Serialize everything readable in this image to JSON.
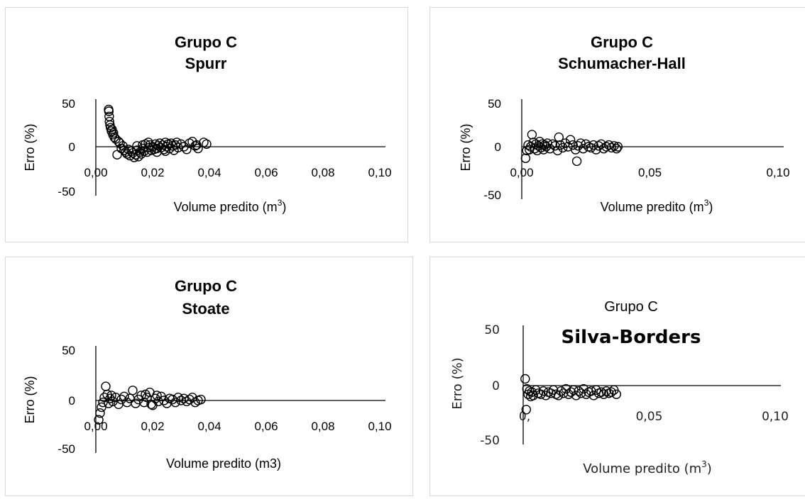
{
  "chart_data": [
    {
      "type": "scatter",
      "title": "Grupo C",
      "subtitle": "Spurr",
      "xlabel": "Volume predito (m",
      "xlabel_sup": "3",
      "xlabel_end": ")",
      "ylabel": "Erro (%)",
      "xlim": [
        0,
        0.1
      ],
      "ylim": [
        -50,
        50
      ],
      "xticks": [
        "0,00",
        "0,02",
        "0,04",
        "0,06",
        "0,08",
        "0,10"
      ],
      "yticks": [
        "50",
        "0",
        "-50"
      ],
      "points": [
        [
          0.0045,
          43
        ],
        [
          0.0046,
          41
        ],
        [
          0.0047,
          35
        ],
        [
          0.0048,
          29
        ],
        [
          0.005,
          25
        ],
        [
          0.0052,
          22
        ],
        [
          0.0055,
          18
        ],
        [
          0.0057,
          20
        ],
        [
          0.006,
          14
        ],
        [
          0.0062,
          16
        ],
        [
          0.0065,
          11
        ],
        [
          0.007,
          9
        ],
        [
          0.0075,
          -9
        ],
        [
          0.008,
          6
        ],
        [
          0.0085,
          4
        ],
        [
          0.009,
          -2
        ],
        [
          0.0095,
          1
        ],
        [
          0.01,
          -4
        ],
        [
          0.0105,
          -6
        ],
        [
          0.011,
          -8
        ],
        [
          0.0115,
          -3
        ],
        [
          0.012,
          -10
        ],
        [
          0.0125,
          -5
        ],
        [
          0.013,
          -7
        ],
        [
          0.0135,
          -12
        ],
        [
          0.014,
          -9
        ],
        [
          0.0145,
          -4
        ],
        [
          0.015,
          -11
        ],
        [
          0.0155,
          -6
        ],
        [
          0.016,
          -8
        ],
        [
          0.0165,
          -2
        ],
        [
          0.017,
          -5
        ],
        [
          0.0175,
          3
        ],
        [
          0.018,
          -6
        ],
        [
          0.0185,
          -1
        ],
        [
          0.019,
          2
        ],
        [
          0.0195,
          -4
        ],
        [
          0.02,
          0
        ],
        [
          0.0205,
          -3
        ],
        [
          0.021,
          3
        ],
        [
          0.0215,
          -2
        ],
        [
          0.022,
          1
        ],
        [
          0.0225,
          4
        ],
        [
          0.023,
          -1
        ],
        [
          0.0235,
          2
        ],
        [
          0.024,
          -3
        ],
        [
          0.0245,
          5
        ],
        [
          0.025,
          0
        ],
        [
          0.0255,
          3
        ],
        [
          0.026,
          -2
        ],
        [
          0.0265,
          4
        ],
        [
          0.027,
          1
        ],
        [
          0.0275,
          -4
        ],
        [
          0.028,
          2
        ],
        [
          0.0285,
          5
        ],
        [
          0.029,
          -1
        ],
        [
          0.03,
          3
        ],
        [
          0.031,
          0
        ],
        [
          0.032,
          -3
        ],
        [
          0.033,
          4
        ],
        [
          0.034,
          6
        ],
        [
          0.035,
          1
        ],
        [
          0.0355,
          2
        ],
        [
          0.036,
          -2
        ],
        [
          0.038,
          5
        ],
        [
          0.039,
          3
        ],
        [
          0.0185,
          5
        ],
        [
          0.0165,
          2
        ],
        [
          0.0145,
          1
        ],
        [
          0.0215,
          -6
        ],
        [
          0.0245,
          -5
        ]
      ]
    },
    {
      "type": "scatter",
      "title": "Grupo C",
      "subtitle": "Schumacher-Hall",
      "xlabel": "Volume predito (m",
      "xlabel_sup": "3",
      "xlabel_end": ")",
      "ylabel": "Erro (%)",
      "xlim": [
        0,
        0.1
      ],
      "ylim": [
        -50,
        50
      ],
      "xticks": [
        "0,00",
        "0,05",
        "0,10"
      ],
      "xtick_values": [
        0,
        0.05,
        0.1
      ],
      "yticks": [
        "50",
        "0",
        "-50"
      ],
      "points": [
        [
          0.0015,
          -12
        ],
        [
          0.002,
          -4
        ],
        [
          0.0025,
          2
        ],
        [
          0.003,
          -3
        ],
        [
          0.0035,
          0
        ],
        [
          0.004,
          14
        ],
        [
          0.0045,
          5
        ],
        [
          0.005,
          -2
        ],
        [
          0.0055,
          3
        ],
        [
          0.006,
          -4
        ],
        [
          0.0065,
          1
        ],
        [
          0.007,
          6
        ],
        [
          0.0075,
          -1
        ],
        [
          0.008,
          3
        ],
        [
          0.0085,
          -3
        ],
        [
          0.009,
          2
        ],
        [
          0.0095,
          0
        ],
        [
          0.01,
          4
        ],
        [
          0.011,
          -2
        ],
        [
          0.012,
          3
        ],
        [
          0.013,
          1
        ],
        [
          0.014,
          -4
        ],
        [
          0.0145,
          11
        ],
        [
          0.015,
          2
        ],
        [
          0.016,
          -1
        ],
        [
          0.017,
          4
        ],
        [
          0.018,
          0
        ],
        [
          0.019,
          8
        ],
        [
          0.02,
          2
        ],
        [
          0.021,
          -3
        ],
        [
          0.0215,
          -15
        ],
        [
          0.022,
          1
        ],
        [
          0.023,
          4
        ],
        [
          0.024,
          -2
        ],
        [
          0.025,
          3
        ],
        [
          0.026,
          0
        ],
        [
          0.027,
          -1
        ],
        [
          0.028,
          2
        ],
        [
          0.029,
          -3
        ],
        [
          0.03,
          1
        ],
        [
          0.031,
          3
        ],
        [
          0.032,
          -2
        ],
        [
          0.033,
          0
        ],
        [
          0.034,
          2
        ],
        [
          0.035,
          -1
        ],
        [
          0.036,
          1
        ],
        [
          0.037,
          -2
        ],
        [
          0.0375,
          0
        ]
      ]
    },
    {
      "type": "scatter",
      "title": "Grupo C",
      "subtitle": "Stoate",
      "xlabel": "Volume predito (m3)",
      "ylabel": "Erro (%)",
      "xlim": [
        0,
        0.1
      ],
      "ylim": [
        -50,
        50
      ],
      "xticks": [
        "0,00",
        "0,02",
        "0,04",
        "0,06",
        "0,08",
        "0,10"
      ],
      "yticks": [
        "50",
        "0",
        "-50"
      ],
      "points": [
        [
          0.001,
          -20
        ],
        [
          0.0015,
          -13
        ],
        [
          0.002,
          -7
        ],
        [
          0.0025,
          -2
        ],
        [
          0.003,
          3
        ],
        [
          0.0035,
          14
        ],
        [
          0.004,
          6
        ],
        [
          0.0045,
          -3
        ],
        [
          0.005,
          2
        ],
        [
          0.0055,
          5
        ],
        [
          0.006,
          -1
        ],
        [
          0.007,
          3
        ],
        [
          0.008,
          -4
        ],
        [
          0.009,
          1
        ],
        [
          0.01,
          4
        ],
        [
          0.011,
          -2
        ],
        [
          0.012,
          2
        ],
        [
          0.013,
          10
        ],
        [
          0.014,
          -3
        ],
        [
          0.015,
          1
        ],
        [
          0.016,
          5
        ],
        [
          0.017,
          -2
        ],
        [
          0.018,
          3
        ],
        [
          0.019,
          8
        ],
        [
          0.02,
          -5
        ],
        [
          0.021,
          2
        ],
        [
          0.022,
          -1
        ],
        [
          0.023,
          4
        ],
        [
          0.024,
          0
        ],
        [
          0.025,
          -3
        ],
        [
          0.026,
          2
        ],
        [
          0.027,
          1
        ],
        [
          0.028,
          -2
        ],
        [
          0.029,
          3
        ],
        [
          0.03,
          0
        ],
        [
          0.031,
          2
        ],
        [
          0.032,
          -1
        ],
        [
          0.033,
          1
        ],
        [
          0.034,
          3
        ],
        [
          0.035,
          -2
        ],
        [
          0.036,
          0
        ],
        [
          0.037,
          1
        ],
        [
          0.0175,
          6
        ],
        [
          0.0195,
          -4
        ],
        [
          0.0215,
          5
        ]
      ]
    },
    {
      "type": "scatter",
      "title": "Grupo C",
      "subtitle": "Silva-Borders",
      "xlabel": "Volume predito (m",
      "xlabel_sup": "3",
      "xlabel_end": ")",
      "ylabel": "Erro (%)",
      "xlim": [
        0,
        0.1
      ],
      "ylim": [
        -50,
        50
      ],
      "xticks": [
        "0,",
        "0,05",
        "0,10"
      ],
      "xtick_values": [
        0,
        0.05,
        0.1
      ],
      "yticks": [
        "50",
        "0",
        "-50"
      ],
      "points": [
        [
          0.0008,
          6
        ],
        [
          0.0012,
          -22
        ],
        [
          0.0015,
          -3
        ],
        [
          0.002,
          -8
        ],
        [
          0.0025,
          -5
        ],
        [
          0.003,
          -10
        ],
        [
          0.0035,
          -6
        ],
        [
          0.004,
          -9
        ],
        [
          0.005,
          -4
        ],
        [
          0.006,
          -7
        ],
        [
          0.007,
          -8
        ],
        [
          0.008,
          -5
        ],
        [
          0.009,
          -9
        ],
        [
          0.01,
          -6
        ],
        [
          0.011,
          -7
        ],
        [
          0.012,
          -4
        ],
        [
          0.013,
          -8
        ],
        [
          0.014,
          -9
        ],
        [
          0.015,
          -5
        ],
        [
          0.016,
          -7
        ],
        [
          0.017,
          -3
        ],
        [
          0.018,
          -8
        ],
        [
          0.019,
          -6
        ],
        [
          0.02,
          -4
        ],
        [
          0.021,
          -9
        ],
        [
          0.022,
          -5
        ],
        [
          0.023,
          -7
        ],
        [
          0.024,
          -3
        ],
        [
          0.025,
          -8
        ],
        [
          0.026,
          -6
        ],
        [
          0.027,
          -5
        ],
        [
          0.028,
          -9
        ],
        [
          0.029,
          -4
        ],
        [
          0.03,
          -7
        ],
        [
          0.031,
          -6
        ],
        [
          0.032,
          -8
        ],
        [
          0.033,
          -5
        ],
        [
          0.034,
          -7
        ],
        [
          0.035,
          -6
        ],
        [
          0.036,
          -4
        ],
        [
          0.037,
          -8
        ]
      ]
    }
  ]
}
